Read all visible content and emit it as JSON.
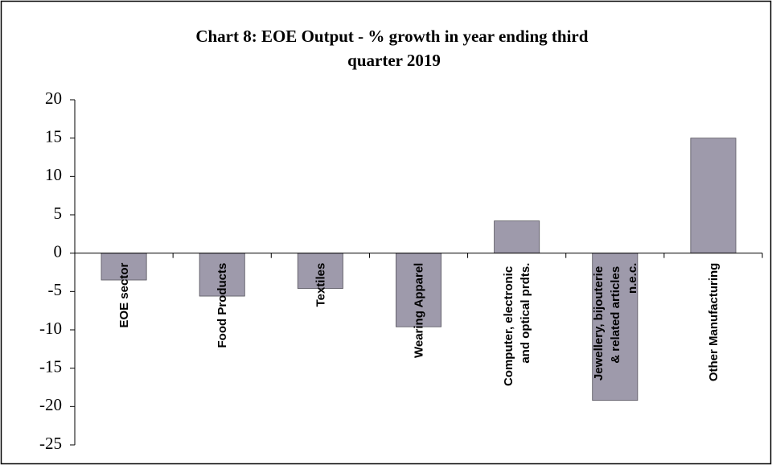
{
  "chart_data": {
    "type": "bar",
    "title": "Chart 8: EOE Output - % growth in year ending third quarter 2019",
    "categories": [
      "EOE sector",
      "Food Products",
      "Textiles",
      "Wearing Apparel",
      "Computer, electronic and optical prdts.",
      "Jewellery, bijouterie & related articles n.e.c.",
      "Other Manufacturing"
    ],
    "values": [
      -3.5,
      -5.6,
      -4.6,
      -9.6,
      4.2,
      -19.2,
      15.0
    ],
    "color": "#9e9aab",
    "ylim": [
      -25,
      20
    ],
    "yticks": [
      -25,
      -20,
      -15,
      -10,
      -5,
      0,
      5,
      10,
      15,
      20
    ],
    "grid": false
  }
}
